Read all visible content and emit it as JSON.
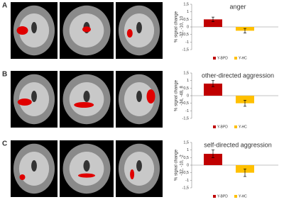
{
  "chart_data": [
    {
      "type": "bar",
      "panel": "A",
      "title": "anger",
      "ylabel": [
        "% signal change",
        "-32, -10, 10"
      ],
      "series": [
        {
          "name": "Y-BPD",
          "color": "#c00000",
          "values": [
            0.5
          ],
          "errors": [
            0.15
          ]
        },
        {
          "name": "Y-HC",
          "color": "#ffc000",
          "values": [
            -0.25
          ],
          "errors": [
            0.15
          ]
        }
      ],
      "ylim": [
        -1.5,
        1.5
      ],
      "yticks": [
        {
          "value": 1.5,
          "label": "1,5"
        },
        1,
        {
          "value": 0.5,
          "label": "0,5"
        },
        0,
        {
          "value": -0.5,
          "label": "-0,5"
        },
        -1,
        {
          "value": -1.5,
          "label": "-1,5"
        }
      ]
    },
    {
      "type": "bar",
      "panel": "B",
      "title": "other-directed aggression",
      "ylabel": [
        "% signal change",
        "-34, -48, 8"
      ],
      "series": [
        {
          "name": "Y-BPD",
          "color": "#c00000",
          "values": [
            0.8
          ],
          "errors": [
            0.2
          ]
        },
        {
          "name": "Y-HC",
          "color": "#ffc000",
          "values": [
            -0.5
          ],
          "errors": [
            0.2
          ]
        }
      ],
      "ylim": [
        -1.5,
        1.5
      ],
      "yticks": [
        {
          "value": 1.5,
          "label": "1,5"
        },
        1,
        {
          "value": 0.5,
          "label": "0,5"
        },
        0,
        {
          "value": -0.5,
          "label": "-0,5"
        },
        -1,
        {
          "value": -1.5,
          "label": "-1,5"
        }
      ]
    },
    {
      "type": "bar",
      "panel": "C",
      "title": "self-directed aggression",
      "ylabel": [
        "% signal change",
        "-32, -10, -2"
      ],
      "series": [
        {
          "name": "Y-BPD",
          "color": "#c00000",
          "values": [
            0.75
          ],
          "errors": [
            0.25
          ]
        },
        {
          "name": "Y-HC",
          "color": "#ffc000",
          "values": [
            -0.5
          ],
          "errors": [
            0.25
          ]
        }
      ],
      "ylim": [
        -1.5,
        1.5
      ],
      "yticks": [
        {
          "value": 1.5,
          "label": "1,5"
        },
        1,
        {
          "value": 0.5,
          "label": "0,5"
        },
        0,
        {
          "value": -0.5,
          "label": "-0,5"
        },
        -1,
        {
          "value": -1.5,
          "label": "-1,5"
        }
      ]
    }
  ]
}
